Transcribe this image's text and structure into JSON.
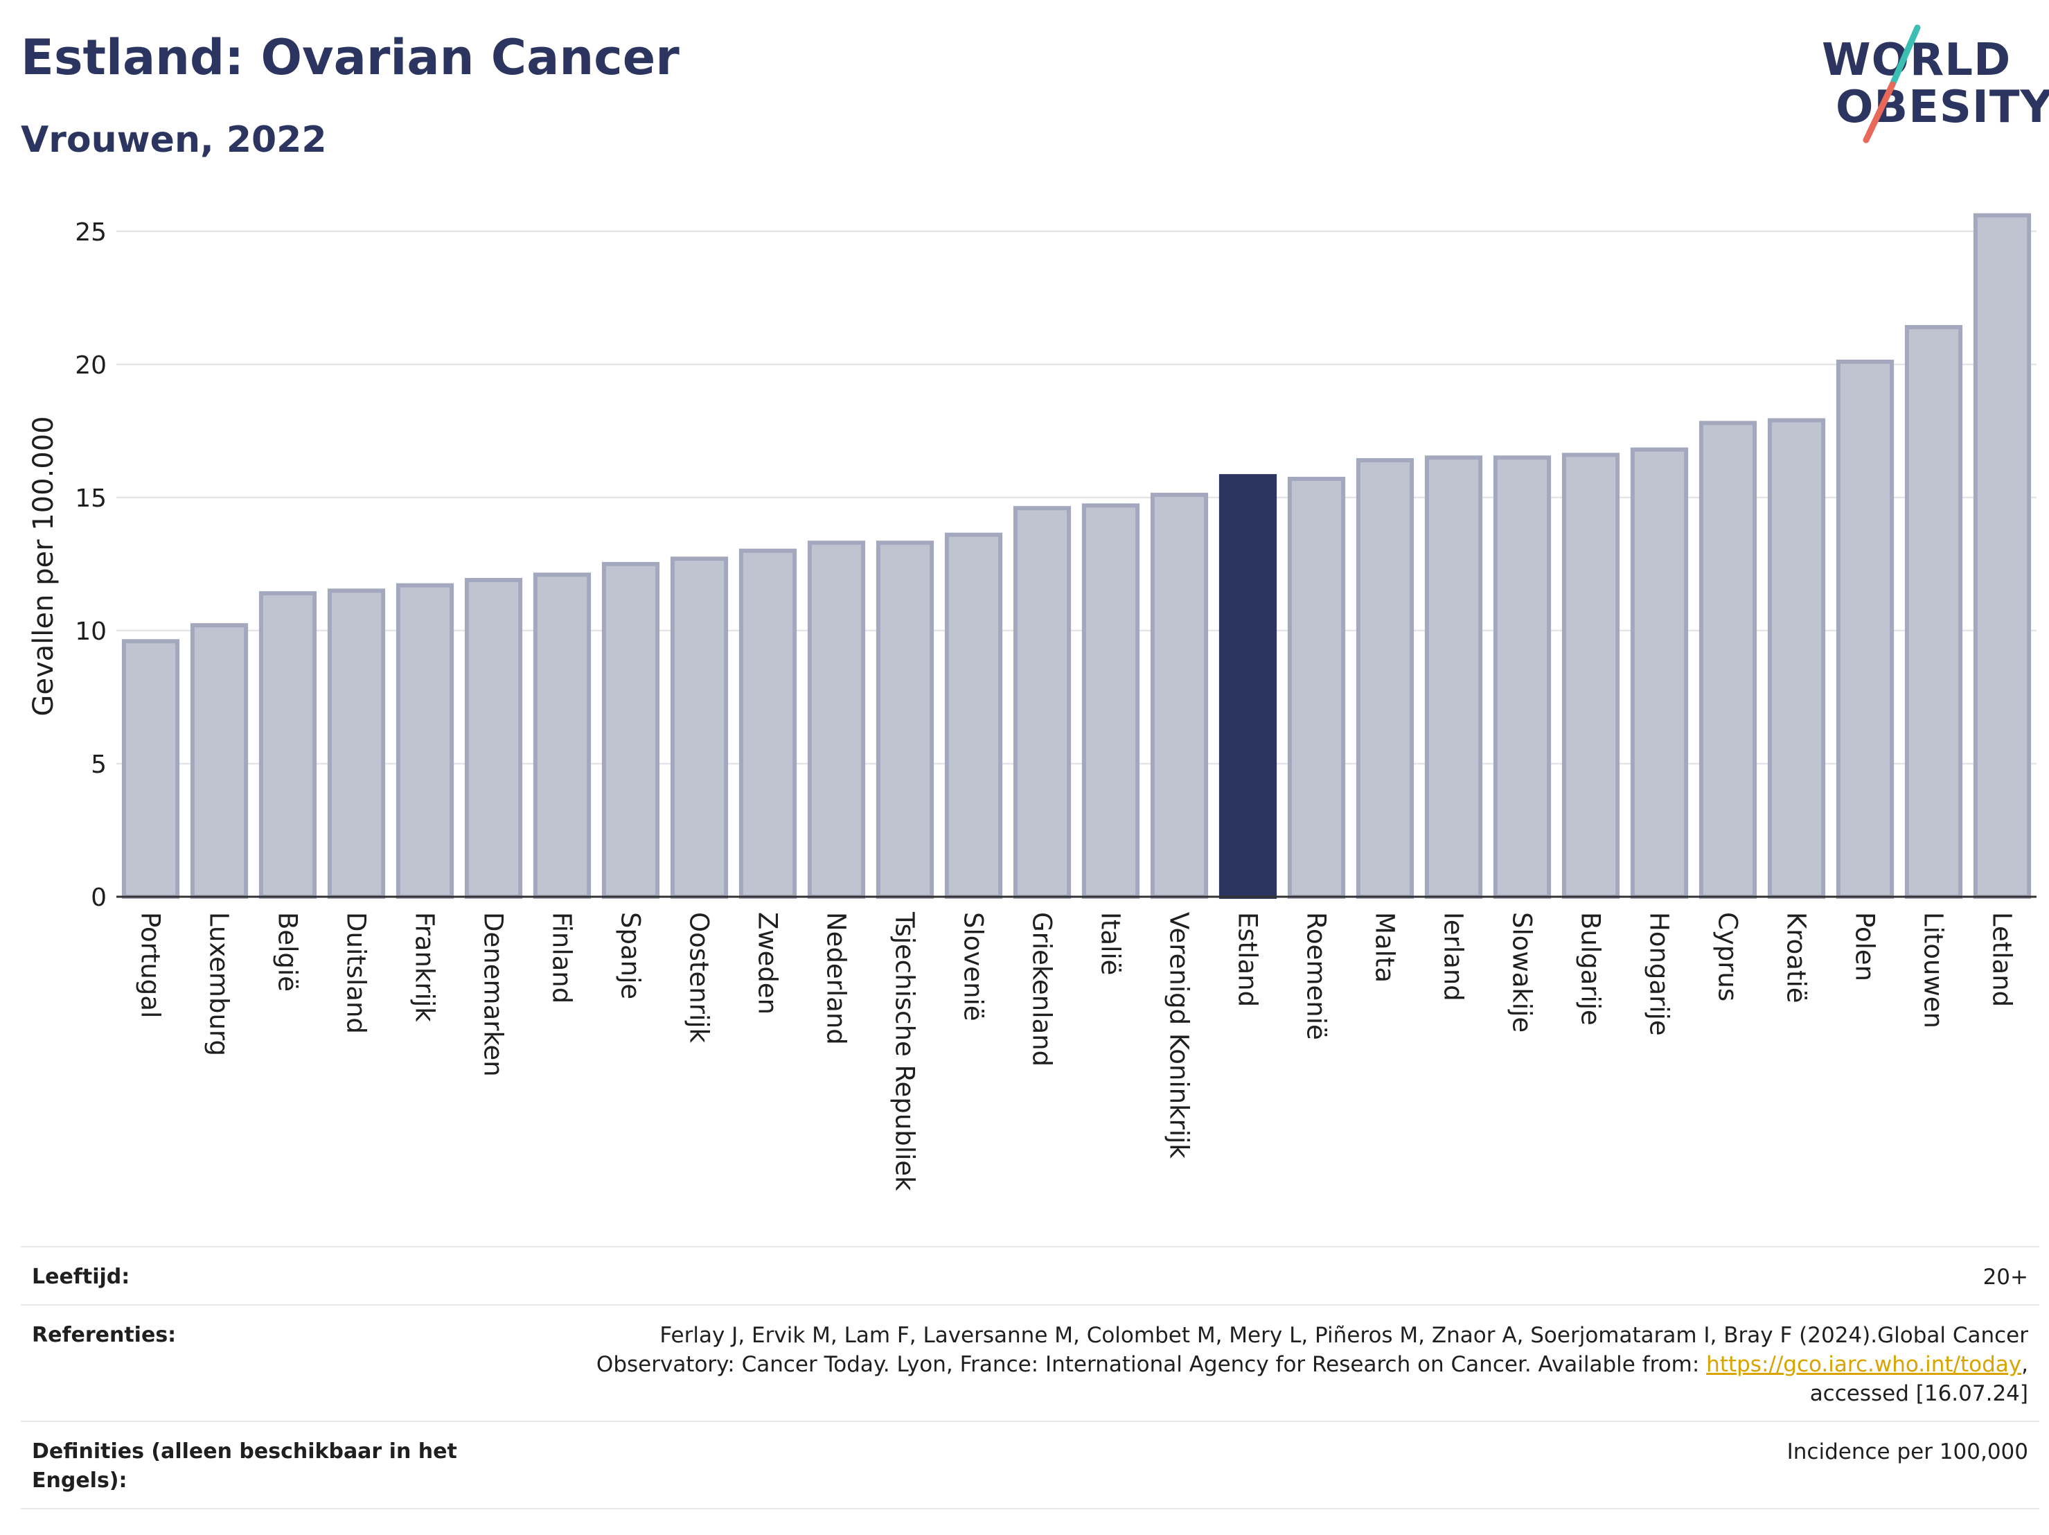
{
  "header": {
    "title": "Estland: Ovarian Cancer",
    "subtitle": "Vrouwen, 2022"
  },
  "logo": {
    "line1": "WORLD",
    "line2": "OBESITY",
    "colors": {
      "text": "#2b3560",
      "slash_top": "#3bbfb3",
      "slash_bottom": "#e8685a"
    }
  },
  "colors": {
    "bar_default": "#c0c3d0",
    "bar_border": "#a3a8be",
    "bar_highlight": "#2b3560",
    "grid": "#e6e6ea",
    "axis": "#333333"
  },
  "chart_data": {
    "type": "bar",
    "ylabel": "Gevallen per 100.000",
    "xlabel": "",
    "ylim": [
      0,
      26.4
    ],
    "yticks": [
      0,
      5,
      10,
      15,
      20,
      25
    ],
    "grid": true,
    "highlight": "Estland",
    "categories": [
      "Portugal",
      "Luxemburg",
      "België",
      "Duitsland",
      "Frankrijk",
      "Denemarken",
      "Finland",
      "Spanje",
      "Oostenrijk",
      "Zweden",
      "Nederland",
      "Tsjechische Republiek",
      "Slovenië",
      "Griekenland",
      "Italië",
      "Verenigd Koninkrijk",
      "Estland",
      "Roemenië",
      "Malta",
      "Ierland",
      "Slowakije",
      "Bulgarije",
      "Hongarije",
      "Cyprus",
      "Kroatië",
      "Polen",
      "Litouwen",
      "Letland"
    ],
    "values": [
      9.6,
      10.2,
      11.4,
      11.5,
      11.7,
      11.9,
      12.1,
      12.5,
      12.7,
      13.0,
      13.3,
      13.3,
      13.6,
      14.6,
      14.7,
      15.1,
      15.8,
      15.7,
      16.4,
      16.5,
      16.5,
      16.6,
      16.8,
      17.8,
      17.9,
      20.1,
      21.4,
      25.6
    ]
  },
  "footer": {
    "age_label": "Leeftijd:",
    "age_value": "20+",
    "refs_label": "Referenties:",
    "refs_text": "Ferlay J, Ervik M, Lam F, Laversanne M, Colombet M, Mery L, Piñeros M, Znaor A, Soerjomataram I, Bray F (2024).Global Cancer Observatory: Cancer Today. Lyon, France: International Agency for Research on Cancer. Available from: ",
    "refs_link": "https://gco.iarc.who.int/today",
    "refs_suffix": ", accessed [16.07.24]",
    "defs_label": "Definities (alleen beschikbaar in het Engels):",
    "defs_value": "Incidence per 100,000"
  }
}
